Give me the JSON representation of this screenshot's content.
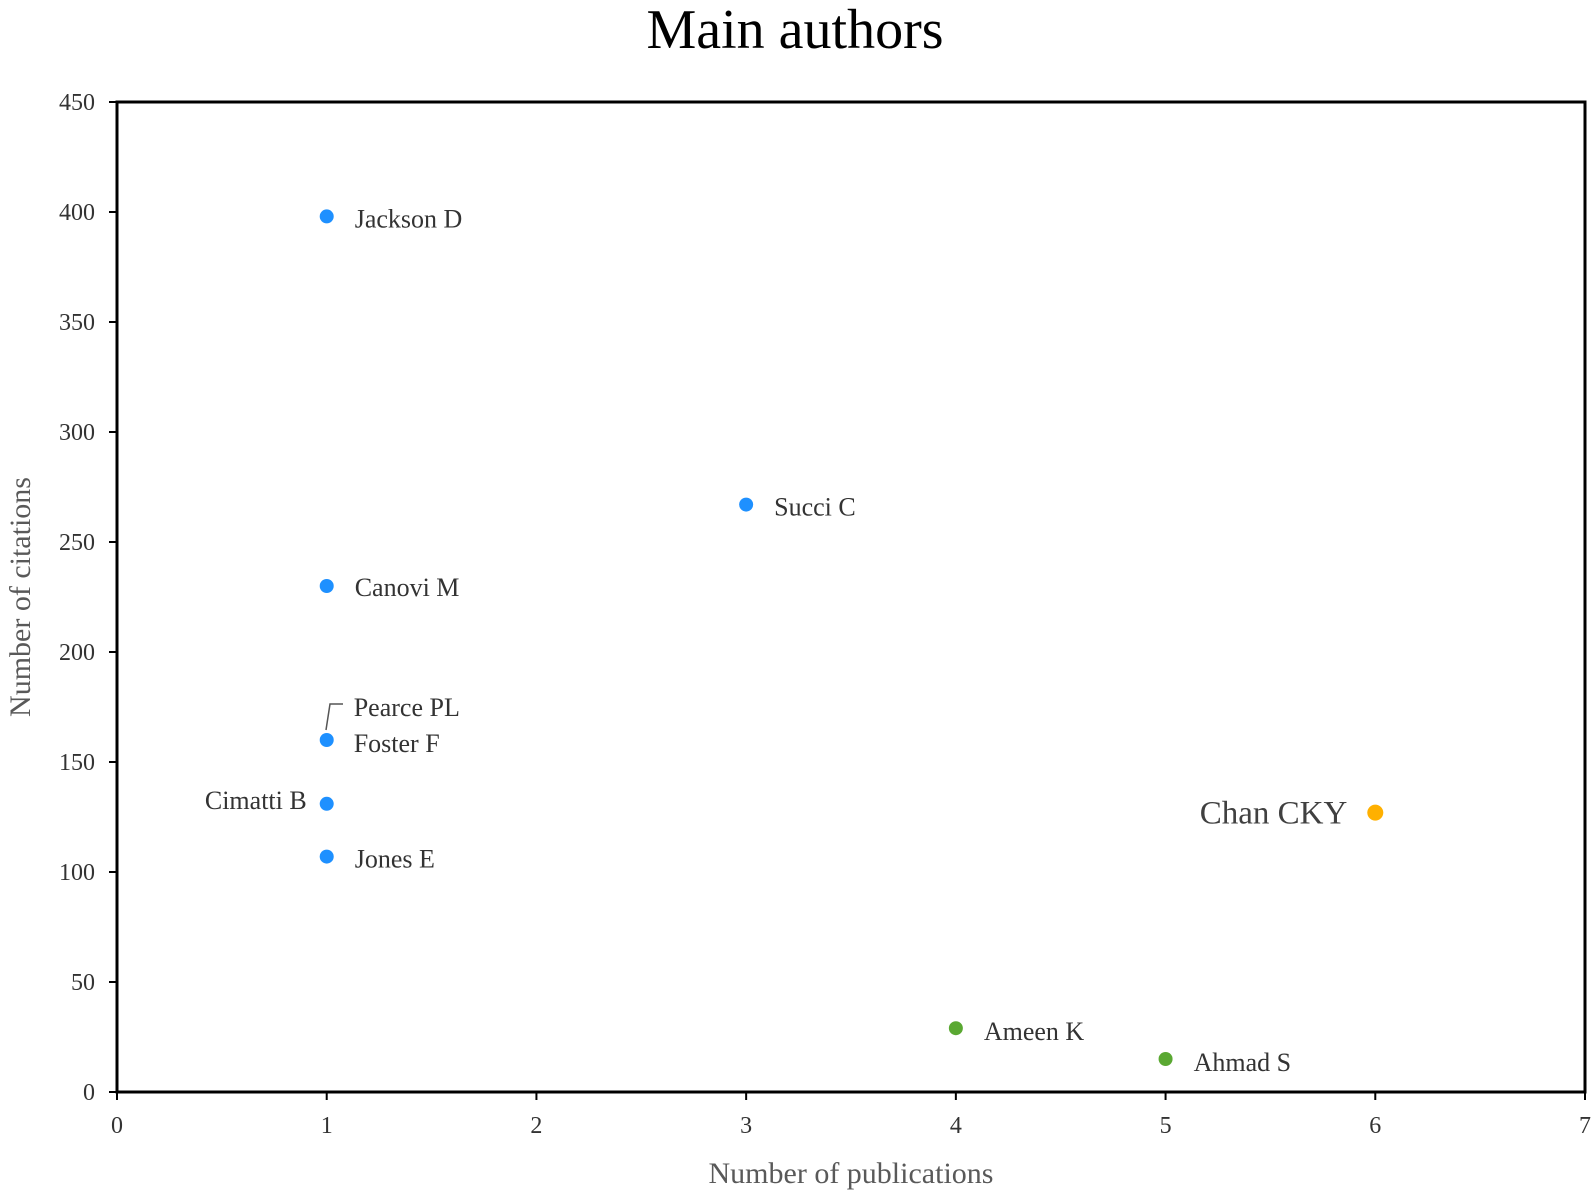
{
  "chart_data": {
    "type": "scatter",
    "title": "Main authors",
    "xlabel": "Number of publications",
    "ylabel": "Number of citations",
    "xlim": [
      0,
      7
    ],
    "ylim": [
      0,
      450
    ],
    "x_ticks": [
      0,
      1,
      2,
      3,
      4,
      5,
      6,
      7
    ],
    "y_ticks": [
      0,
      50,
      100,
      150,
      200,
      250,
      300,
      350,
      400,
      450
    ],
    "grid": false,
    "points": [
      {
        "label": "Jackson D",
        "x": 1,
        "y": 398,
        "color": "#1e90ff"
      },
      {
        "label": "Succi C",
        "x": 3,
        "y": 267,
        "color": "#1e90ff"
      },
      {
        "label": "Canovi M",
        "x": 1,
        "y": 230,
        "color": "#1e90ff"
      },
      {
        "label": "Pearce PL",
        "x": 1,
        "y": 160,
        "color": "#1e90ff"
      },
      {
        "label": "Foster F",
        "x": 1,
        "y": 160,
        "color": "#1e90ff"
      },
      {
        "label": "Cimatti B",
        "x": 1,
        "y": 131,
        "color": "#1e90ff"
      },
      {
        "label": "Jones E",
        "x": 1,
        "y": 107,
        "color": "#1e90ff"
      },
      {
        "label": "Chan CKY",
        "x": 6,
        "y": 127,
        "color": "#ffb000"
      },
      {
        "label": "Ameen K",
        "x": 4,
        "y": 29,
        "color": "#5aa832"
      },
      {
        "label": "Ahmad S",
        "x": 5,
        "y": 15,
        "color": "#5aa832"
      }
    ]
  }
}
